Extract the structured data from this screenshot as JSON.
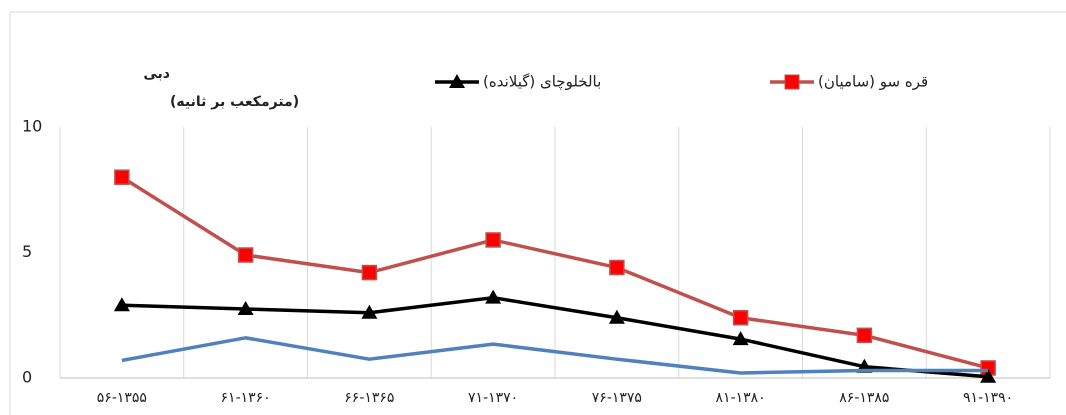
{
  "chart_data": {
    "type": "line",
    "y_label_lines": [
      "دبی",
      "(مترمکعب بر ثانیه)"
    ],
    "categories": [
      "۵۶-۱۳۵۵",
      "۶۱-۱۳۶۰",
      "۶۶-۱۳۶۵",
      "۷۱-۱۳۷۰",
      "۷۶-۱۳۷۵",
      "۸۱-۱۳۸۰",
      "۸۶-۱۳۸۵",
      "۹۱-۱۳۹۰"
    ],
    "series": [
      {
        "name": "قره سو (سامیان)",
        "color": "#c0504d",
        "marker": "square",
        "marker_color": "#ff0000",
        "values": [
          8.0,
          4.9,
          4.2,
          5.5,
          4.4,
          2.4,
          1.7,
          0.4
        ]
      },
      {
        "name": "بالخلوچای (گیلانده)",
        "color": "#000000",
        "marker": "triangle",
        "marker_color": "#000000",
        "values": [
          2.9,
          2.75,
          2.6,
          3.2,
          2.4,
          1.55,
          0.45,
          0.05
        ]
      },
      {
        "color": "#4f81bd",
        "marker": "none",
        "values": [
          0.7,
          1.6,
          0.75,
          1.35,
          0.75,
          0.2,
          0.3,
          0.3
        ]
      }
    ],
    "ylim": [
      0,
      10
    ],
    "yticks": [
      0,
      5,
      10
    ],
    "vertical_grid": true
  }
}
